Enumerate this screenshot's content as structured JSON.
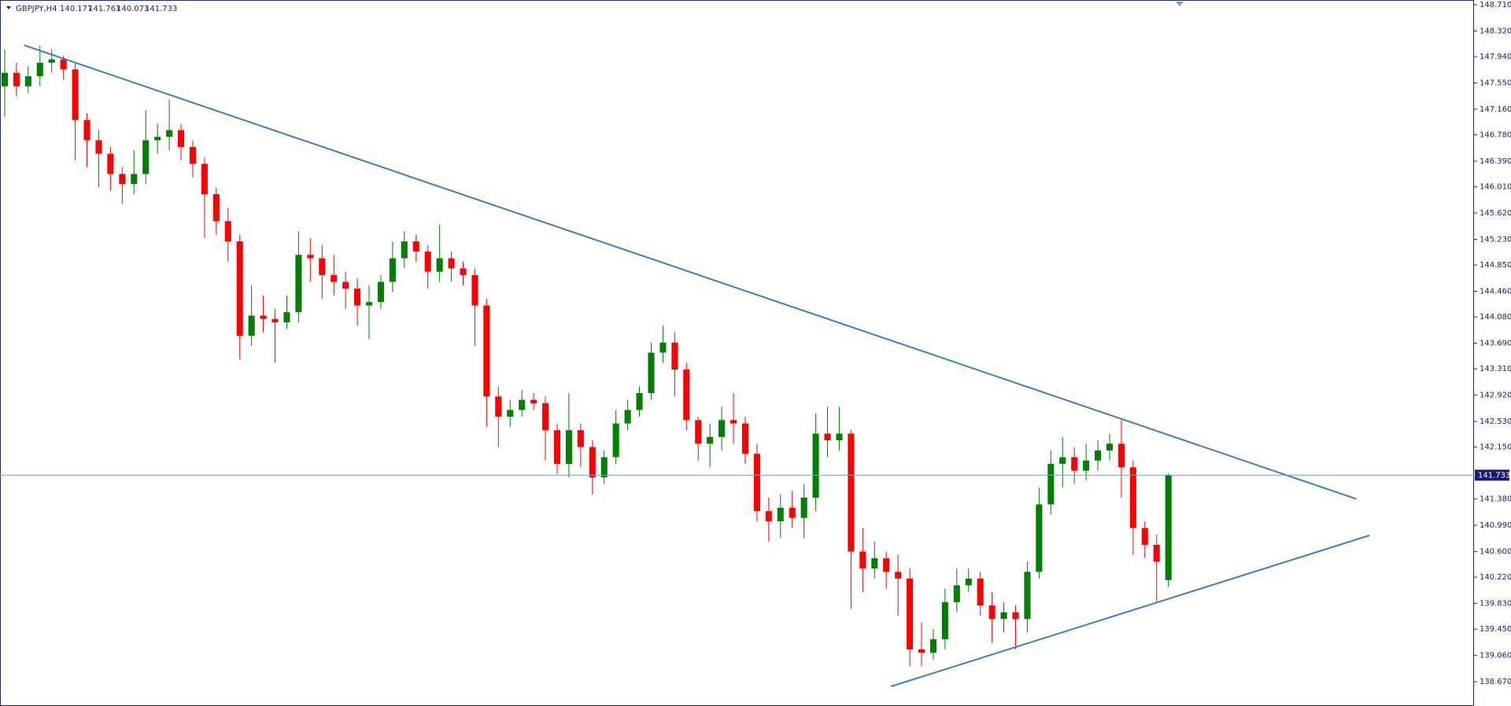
{
  "chart_data": {
    "type": "candlestick",
    "symbol": "GBPJPY,H4",
    "up_color": "#008000",
    "down_color": "#ff0000",
    "trendline_color": "#3a7fc0",
    "price_line_color": "#7aa3bf",
    "ylim": [
      138.31,
      148.78
    ],
    "xlim": [
      -0.4,
      125
    ],
    "yticks": [
      {
        "value": 148.71,
        "label": "148.710"
      },
      {
        "value": 148.32,
        "label": "148.320"
      },
      {
        "value": 147.94,
        "label": "147.940"
      },
      {
        "value": 147.55,
        "label": "147.550"
      },
      {
        "value": 147.16,
        "label": "147.160"
      },
      {
        "value": 146.78,
        "label": "146.780"
      },
      {
        "value": 146.39,
        "label": "146.390"
      },
      {
        "value": 146.01,
        "label": "146.010"
      },
      {
        "value": 145.62,
        "label": "145.620"
      },
      {
        "value": 145.23,
        "label": "145.230"
      },
      {
        "value": 144.85,
        "label": "144.850"
      },
      {
        "value": 144.46,
        "label": "144.460"
      },
      {
        "value": 144.08,
        "label": "144.080"
      },
      {
        "value": 143.69,
        "label": "143.690"
      },
      {
        "value": 143.31,
        "label": "143.310"
      },
      {
        "value": 142.92,
        "label": "142.920"
      },
      {
        "value": 142.53,
        "label": "142.530"
      },
      {
        "value": 142.15,
        "label": "142.150"
      },
      {
        "value": 141.38,
        "label": "141.380"
      },
      {
        "value": 140.99,
        "label": "140.990"
      },
      {
        "value": 140.6,
        "label": "140.600"
      },
      {
        "value": 140.22,
        "label": "140.220"
      },
      {
        "value": 139.83,
        "label": "139.830"
      },
      {
        "value": 139.45,
        "label": "139.450"
      },
      {
        "value": 139.06,
        "label": "139.060"
      },
      {
        "value": 138.67,
        "label": "138.670"
      }
    ],
    "open": [
      147.5,
      147.7,
      147.5,
      147.65,
      147.85,
      147.9,
      147.75,
      147.0,
      146.7,
      146.5,
      146.2,
      146.05,
      146.2,
      146.7,
      146.75,
      146.85,
      146.6,
      146.35,
      145.9,
      145.5,
      145.2,
      143.8,
      144.1,
      144.05,
      144.0,
      144.15,
      145.0,
      144.95,
      144.7,
      144.6,
      144.5,
      144.25,
      144.3,
      144.6,
      144.95,
      145.2,
      145.05,
      144.75,
      144.95,
      144.8,
      144.7,
      144.25,
      142.9,
      142.6,
      142.7,
      142.85,
      142.8,
      142.4,
      141.9,
      142.4,
      142.15,
      141.7,
      142.0,
      142.5,
      142.7,
      142.95,
      143.55,
      143.7,
      143.3,
      142.55,
      142.2,
      142.3,
      142.55,
      142.5,
      142.05,
      141.2,
      141.05,
      141.25,
      141.1,
      141.4,
      142.35,
      142.25,
      142.35,
      140.6,
      140.35,
      140.5,
      140.3,
      140.2,
      139.15,
      139.1,
      139.3,
      139.85,
      140.1,
      140.2,
      139.8,
      139.6,
      139.7,
      139.6,
      140.3,
      141.3,
      141.9,
      142.0,
      141.8,
      141.95,
      142.1,
      142.2,
      141.85,
      140.95,
      140.7,
      140.177
    ],
    "high": [
      148.05,
      147.85,
      147.8,
      148.1,
      148.05,
      147.95,
      147.85,
      147.1,
      146.85,
      146.6,
      146.3,
      146.55,
      147.15,
      146.95,
      147.3,
      146.95,
      146.7,
      146.45,
      146.0,
      145.7,
      145.3,
      144.55,
      144.4,
      144.2,
      144.4,
      145.35,
      145.25,
      145.15,
      145.0,
      144.75,
      144.65,
      144.55,
      144.7,
      145.2,
      145.35,
      145.3,
      145.15,
      145.45,
      145.05,
      144.9,
      144.8,
      144.35,
      143.05,
      142.85,
      143.0,
      142.95,
      142.9,
      142.5,
      142.95,
      142.5,
      142.25,
      142.1,
      142.7,
      142.85,
      143.05,
      143.7,
      143.95,
      143.85,
      143.4,
      142.6,
      142.5,
      142.75,
      142.95,
      142.6,
      142.2,
      141.4,
      141.45,
      141.5,
      141.6,
      142.65,
      142.75,
      142.75,
      142.4,
      140.95,
      140.75,
      140.6,
      140.55,
      140.35,
      139.55,
      139.45,
      140.05,
      140.35,
      140.35,
      140.3,
      140.0,
      139.85,
      139.8,
      140.45,
      141.55,
      142.1,
      142.3,
      142.15,
      142.2,
      142.25,
      142.35,
      142.55,
      141.95,
      141.05,
      140.85,
      141.761
    ],
    "low": [
      147.05,
      147.35,
      147.4,
      147.5,
      147.7,
      147.6,
      146.4,
      146.3,
      146.0,
      145.95,
      145.75,
      145.9,
      146.05,
      146.5,
      146.55,
      146.4,
      146.15,
      145.25,
      145.3,
      144.9,
      143.45,
      143.65,
      143.85,
      143.4,
      143.9,
      144.0,
      144.6,
      144.35,
      144.4,
      144.2,
      143.95,
      143.75,
      144.2,
      144.45,
      144.8,
      144.9,
      144.5,
      144.6,
      144.6,
      144.55,
      143.65,
      142.45,
      142.15,
      142.45,
      142.6,
      142.7,
      141.95,
      141.75,
      141.7,
      141.85,
      141.45,
      141.6,
      141.9,
      142.4,
      142.6,
      142.85,
      143.4,
      142.9,
      142.4,
      141.95,
      141.85,
      142.1,
      142.2,
      141.9,
      141.05,
      140.75,
      140.8,
      140.95,
      140.8,
      141.2,
      142.0,
      142.1,
      139.75,
      140.0,
      140.2,
      140.05,
      139.65,
      138.9,
      138.9,
      139.0,
      139.15,
      139.7,
      140.0,
      139.65,
      139.25,
      139.4,
      139.15,
      139.4,
      140.2,
      141.15,
      141.55,
      141.6,
      141.65,
      141.8,
      141.95,
      141.4,
      140.55,
      140.5,
      139.85,
      140.073
    ],
    "close": [
      147.7,
      147.5,
      147.65,
      147.85,
      147.9,
      147.75,
      147.0,
      146.7,
      146.5,
      146.2,
      146.05,
      146.2,
      146.7,
      146.75,
      146.85,
      146.6,
      146.35,
      145.9,
      145.5,
      145.2,
      143.8,
      144.1,
      144.05,
      144.0,
      144.15,
      145.0,
      144.95,
      144.7,
      144.6,
      144.5,
      144.25,
      144.3,
      144.6,
      144.95,
      145.2,
      145.05,
      144.75,
      144.95,
      144.8,
      144.7,
      144.25,
      142.9,
      142.6,
      142.7,
      142.85,
      142.8,
      142.4,
      141.9,
      142.4,
      142.15,
      141.7,
      142.0,
      142.5,
      142.7,
      142.95,
      143.55,
      143.7,
      143.3,
      142.55,
      142.2,
      142.3,
      142.55,
      142.5,
      142.05,
      141.2,
      141.05,
      141.25,
      141.1,
      141.4,
      142.35,
      142.25,
      142.35,
      140.6,
      140.35,
      140.5,
      140.3,
      140.2,
      139.15,
      139.1,
      139.3,
      139.85,
      140.1,
      140.2,
      139.8,
      139.6,
      139.7,
      139.6,
      140.3,
      141.3,
      141.9,
      142.0,
      141.8,
      141.95,
      142.1,
      142.2,
      141.85,
      140.95,
      140.7,
      140.45,
      141.733
    ],
    "trendlines": [
      {
        "start": {
          "x": 1.64,
          "y": 148.11
        },
        "end": {
          "x": 115,
          "y": 141.38
        }
      },
      {
        "start": {
          "x": 75.4,
          "y": 138.6
        },
        "end": {
          "x": 116.1,
          "y": 140.84
        }
      }
    ]
  }
}
